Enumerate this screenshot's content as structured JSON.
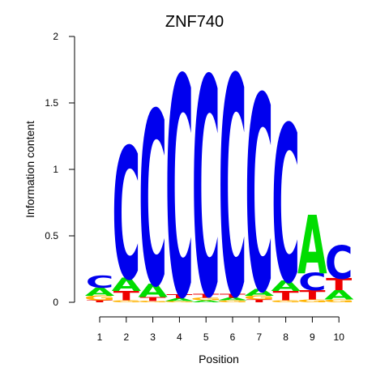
{
  "chart_data": {
    "type": "sequence-logo",
    "title": "ZNF740",
    "xlabel": "Position",
    "ylabel": "Information content",
    "ylim": [
      0,
      2
    ],
    "yticks": [
      "0",
      "0.5",
      "1",
      "1.5",
      "2"
    ],
    "categories": [
      "1",
      "2",
      "3",
      "4",
      "5",
      "6",
      "7",
      "8",
      "9",
      "10"
    ],
    "colors": {
      "A": "#00dd00",
      "C": "#0000ee",
      "G": "#ffb300",
      "T": "#ee0000"
    },
    "positions": [
      {
        "position": "1",
        "letters": [
          {
            "base": "T",
            "height": 0.015
          },
          {
            "base": "G",
            "height": 0.035
          },
          {
            "base": "A",
            "height": 0.06
          },
          {
            "base": "C",
            "height": 0.09
          }
        ]
      },
      {
        "position": "2",
        "letters": [
          {
            "base": "G",
            "height": 0.015
          },
          {
            "base": "T",
            "height": 0.07
          },
          {
            "base": "A",
            "height": 0.1
          },
          {
            "base": "C",
            "height": 0.99
          }
        ]
      },
      {
        "position": "3",
        "letters": [
          {
            "base": "G",
            "height": 0.01
          },
          {
            "base": "T",
            "height": 0.03
          },
          {
            "base": "A",
            "height": 0.1
          },
          {
            "base": "C",
            "height": 1.31
          }
        ]
      },
      {
        "position": "4",
        "letters": [
          {
            "base": "G",
            "height": 0.01
          },
          {
            "base": "A",
            "height": 0.02
          },
          {
            "base": "T",
            "height": 0.03
          },
          {
            "base": "C",
            "height": 1.65
          }
        ]
      },
      {
        "position": "5",
        "letters": [
          {
            "base": "A",
            "height": 0.015
          },
          {
            "base": "G",
            "height": 0.02
          },
          {
            "base": "T",
            "height": 0.03
          },
          {
            "base": "C",
            "height": 1.64
          }
        ]
      },
      {
        "position": "6",
        "letters": [
          {
            "base": "G",
            "height": 0.015
          },
          {
            "base": "A",
            "height": 0.02
          },
          {
            "base": "T",
            "height": 0.03
          },
          {
            "base": "C",
            "height": 1.65
          }
        ]
      },
      {
        "position": "7",
        "letters": [
          {
            "base": "T",
            "height": 0.02
          },
          {
            "base": "G",
            "height": 0.03
          },
          {
            "base": "A",
            "height": 0.05
          },
          {
            "base": "C",
            "height": 1.47
          }
        ]
      },
      {
        "position": "8",
        "letters": [
          {
            "base": "G",
            "height": 0.015
          },
          {
            "base": "T",
            "height": 0.07
          },
          {
            "base": "A",
            "height": 0.08
          },
          {
            "base": "C",
            "height": 1.18
          }
        ]
      },
      {
        "position": "9",
        "letters": [
          {
            "base": "G",
            "height": 0.02
          },
          {
            "base": "T",
            "height": 0.07
          },
          {
            "base": "C",
            "height": 0.13
          },
          {
            "base": "A",
            "height": 0.44
          }
        ]
      },
      {
        "position": "10",
        "letters": [
          {
            "base": "G",
            "height": 0.02
          },
          {
            "base": "A",
            "height": 0.07
          },
          {
            "base": "T",
            "height": 0.09
          },
          {
            "base": "C",
            "height": 0.25
          }
        ]
      }
    ]
  }
}
